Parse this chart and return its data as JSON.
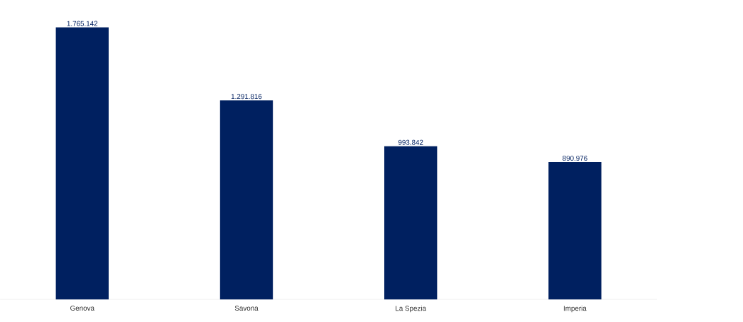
{
  "chart_data": {
    "type": "bar",
    "categories": [
      "Genova",
      "Savona",
      "La Spezia",
      "Imperia"
    ],
    "values": [
      1765142,
      1291816,
      993842,
      890976
    ],
    "value_labels": [
      "1.765.142",
      "1.291.816",
      "993.842",
      "890.976"
    ],
    "color": "#002060"
  }
}
